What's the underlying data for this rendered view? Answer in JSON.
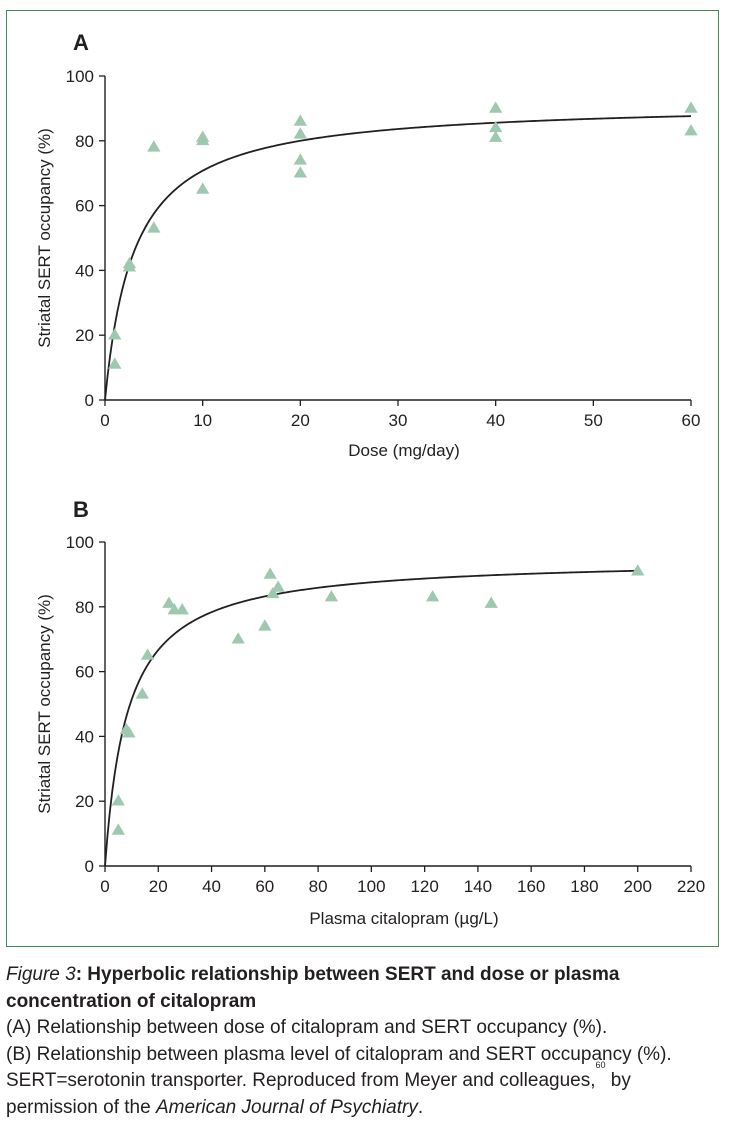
{
  "colors": {
    "frame": "#3f8a5e",
    "marker": "#9ec8b0",
    "text": "#231f20"
  },
  "chart_data": [
    {
      "type": "scatter",
      "panel_label": "A",
      "xlabel": "Dose (mg/day)",
      "ylabel": "Striatal SERT occupancy (%)",
      "xlim": [
        0,
        60
      ],
      "ylim": [
        0,
        100
      ],
      "xticks": [
        0,
        10,
        20,
        30,
        40,
        50,
        60
      ],
      "yticks": [
        0,
        20,
        40,
        60,
        80,
        100
      ],
      "points": [
        [
          1,
          20
        ],
        [
          1,
          11
        ],
        [
          2.5,
          42
        ],
        [
          2.5,
          41
        ],
        [
          5,
          78
        ],
        [
          5,
          53
        ],
        [
          10,
          81
        ],
        [
          10,
          80
        ],
        [
          10,
          65
        ],
        [
          20,
          86
        ],
        [
          20,
          82
        ],
        [
          20,
          74
        ],
        [
          20,
          70
        ],
        [
          40,
          90
        ],
        [
          40,
          84
        ],
        [
          40,
          81
        ],
        [
          60,
          90
        ],
        [
          60,
          83
        ]
      ],
      "fit": {
        "model": "hyperbolic",
        "emax": 92,
        "ed50": 3.0
      }
    },
    {
      "type": "scatter",
      "panel_label": "B",
      "xlabel": "Plasma citalopram (µg/L)",
      "ylabel": "Striatal SERT occupancy (%)",
      "xlim": [
        0,
        220
      ],
      "ylim": [
        0,
        100
      ],
      "xticks": [
        0,
        20,
        40,
        60,
        80,
        100,
        120,
        140,
        160,
        180,
        200,
        220
      ],
      "yticks": [
        0,
        20,
        40,
        60,
        80,
        100
      ],
      "points": [
        [
          5,
          20
        ],
        [
          5,
          11
        ],
        [
          8,
          42
        ],
        [
          9,
          41
        ],
        [
          14,
          53
        ],
        [
          16,
          65
        ],
        [
          24,
          81
        ],
        [
          26,
          79
        ],
        [
          29,
          79
        ],
        [
          50,
          70
        ],
        [
          60,
          74
        ],
        [
          62,
          90
        ],
        [
          63,
          84
        ],
        [
          65,
          86
        ],
        [
          85,
          83
        ],
        [
          123,
          83
        ],
        [
          145,
          81
        ],
        [
          200,
          91
        ]
      ],
      "fit": {
        "model": "hyperbolic",
        "emax": 95,
        "ed50": 8.5
      }
    }
  ],
  "caption": {
    "figure_label": "Figure 3",
    "title": ": Hyperbolic relationship between SERT and dose or plasma concentration of citalopram",
    "line_a": "(A) Relationship between dose of citalopram and SERT occupancy (%).",
    "line_b": "(B) Relationship between plasma level of citalopram and SERT occupancy (%).",
    "note_before_ref": "SERT=serotonin transporter. Reproduced from Meyer and colleagues,",
    "ref_number": "60",
    "note_after_ref": " by permission of the ",
    "journal": "American Journal of Psychiatry",
    "end": "."
  }
}
